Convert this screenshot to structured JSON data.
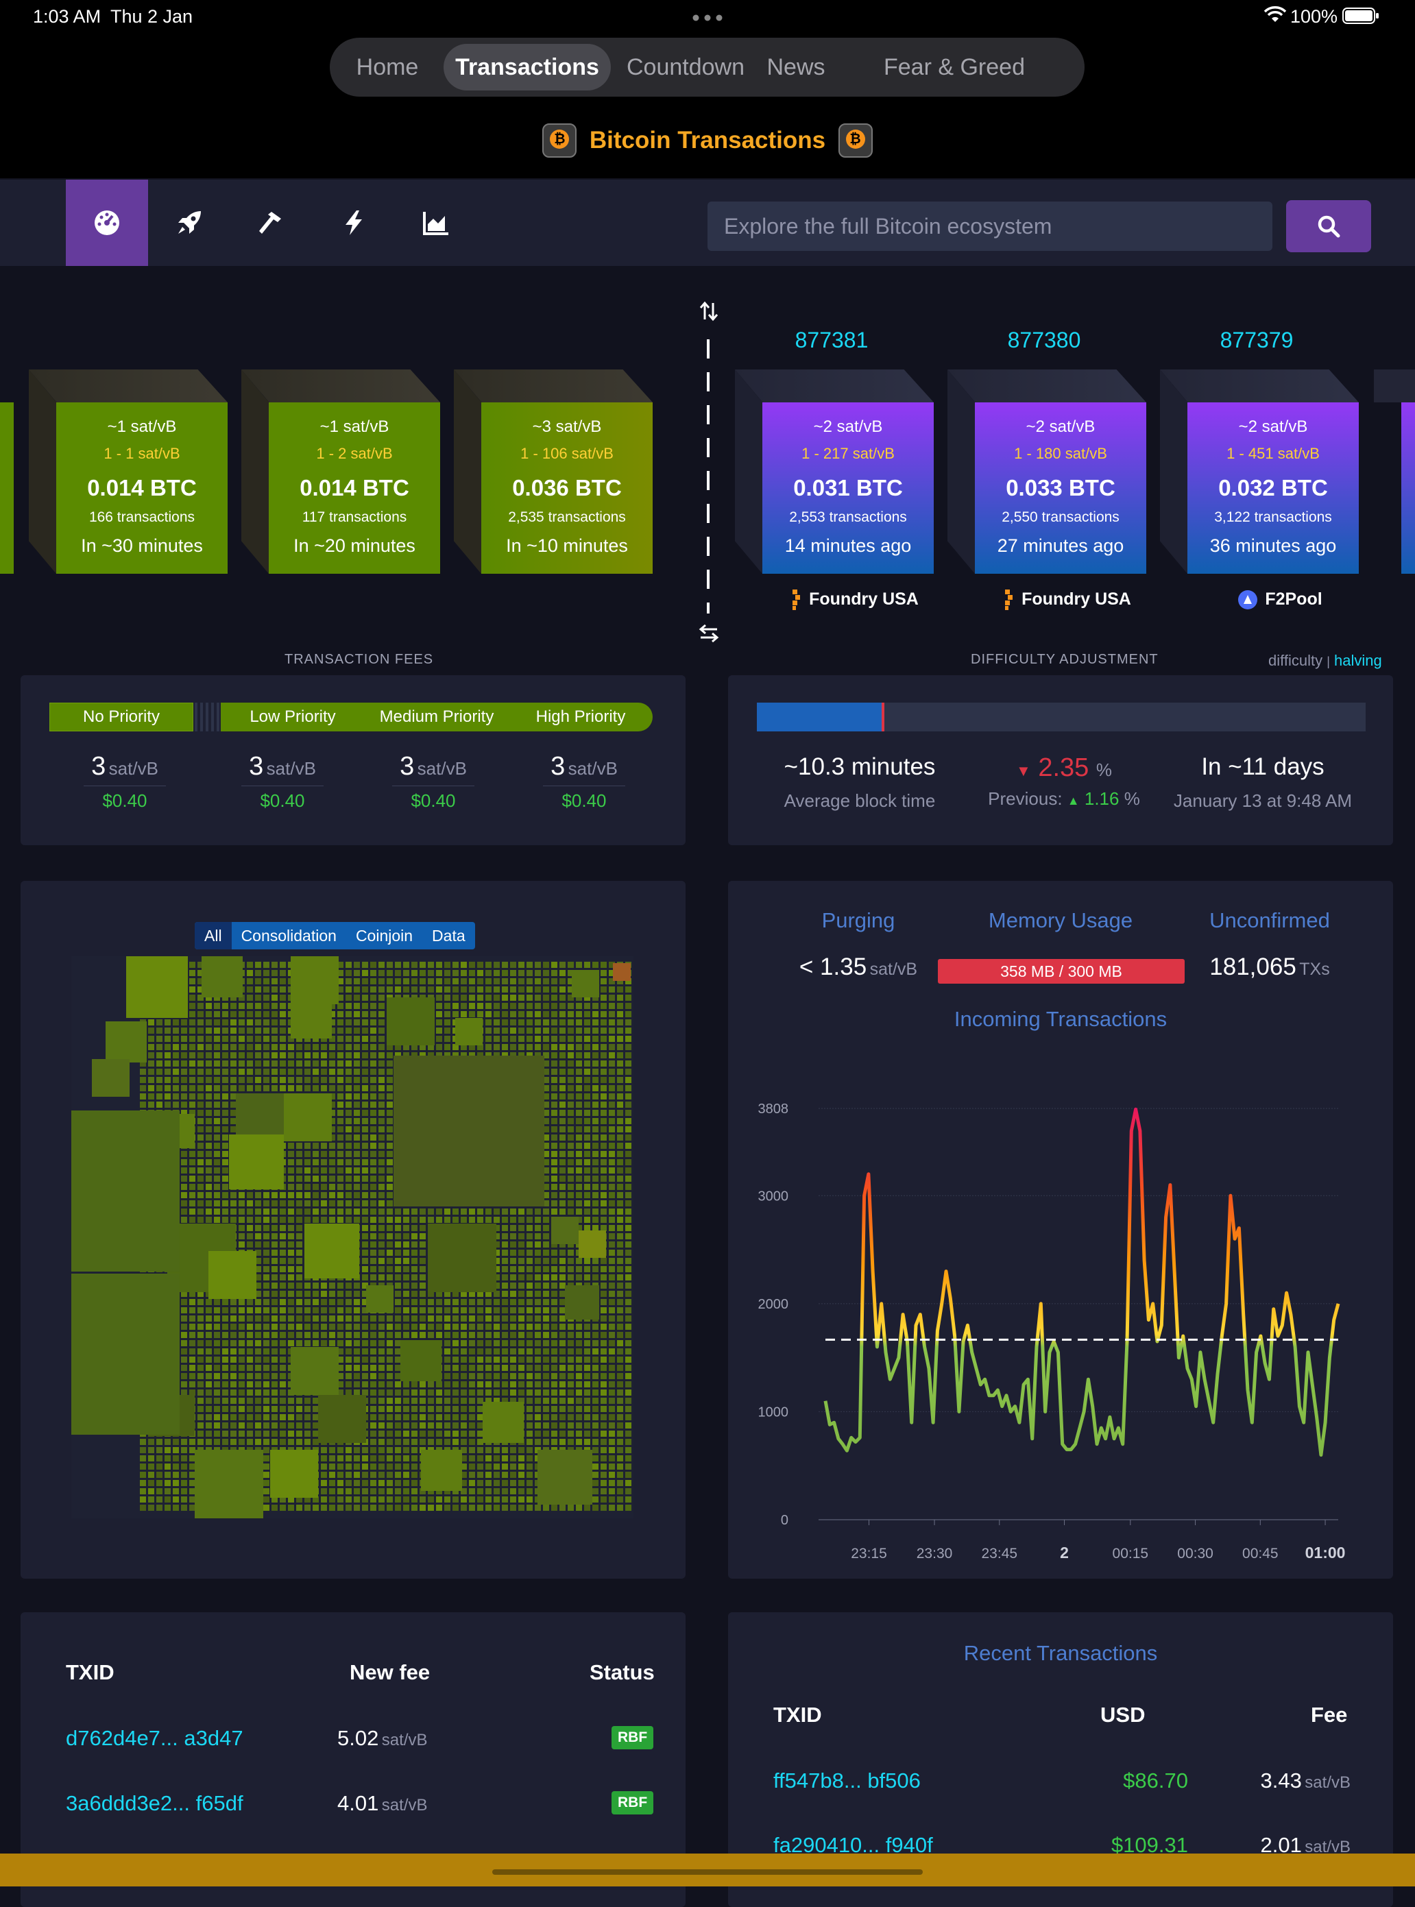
{
  "status_bar": {
    "time": "1:03 AM",
    "date": "Thu 2 Jan",
    "battery": "100%"
  },
  "nav": {
    "tabs": [
      {
        "label": "Home",
        "active": false
      },
      {
        "label": "Transactions",
        "active": true
      },
      {
        "label": "Countdown",
        "active": false
      },
      {
        "label": "News",
        "active": false
      },
      {
        "label": "Fear & Greed",
        "active": false
      }
    ]
  },
  "app_title": "Bitcoin Transactions",
  "toolbar": {
    "icons": [
      "dashboard-icon",
      "rocket-icon",
      "hammer-icon",
      "lightning-icon",
      "area-chart-icon"
    ],
    "search_placeholder": "Explore the full Bitcoin ecosystem"
  },
  "mempool_blocks": [
    {
      "median": "~1 sat/vB",
      "range": "1 - 1 sat/vB",
      "total": "0.014 BTC",
      "txs": "166 transactions",
      "eta": "In ~30 minutes"
    },
    {
      "median": "~1 sat/vB",
      "range": "1 - 2 sat/vB",
      "total": "0.014 BTC",
      "txs": "117 transactions",
      "eta": "In ~20 minutes"
    },
    {
      "median": "~3 sat/vB",
      "range": "1 - 106 sat/vB",
      "total": "0.036 BTC",
      "txs": "2,535 transactions",
      "eta": "In ~10 minutes"
    }
  ],
  "mined_blocks": [
    {
      "height": "877381",
      "median": "~2 sat/vB",
      "range": "1 - 217 sat/vB",
      "total": "0.031 BTC",
      "txs": "2,553 transactions",
      "age": "14 minutes ago",
      "pool": "Foundry USA"
    },
    {
      "height": "877380",
      "median": "~2 sat/vB",
      "range": "1 - 180 sat/vB",
      "total": "0.033 BTC",
      "txs": "2,550 transactions",
      "age": "27 minutes ago",
      "pool": "Foundry USA"
    },
    {
      "height": "877379",
      "median": "~2 sat/vB",
      "range": "1 - 451 sat/vB",
      "total": "0.032 BTC",
      "txs": "3,122 transactions",
      "age": "36 minutes ago",
      "pool": "F2Pool"
    }
  ],
  "fees": {
    "section_label": "TRANSACTION FEES",
    "labels": [
      "No Priority",
      "Low Priority",
      "Medium Priority",
      "High Priority"
    ],
    "values": [
      "3",
      "3",
      "3",
      "3"
    ],
    "unit": "sat/vB",
    "usd": [
      "$0.40",
      "$0.40",
      "$0.40",
      "$0.40"
    ]
  },
  "difficulty": {
    "section_label": "DIFFICULTY ADJUSTMENT",
    "links": {
      "difficulty": "difficulty",
      "separator": "|",
      "halving": "halving"
    },
    "progress": 0.21,
    "avg_block_time": "~10.3 minutes",
    "avg_block_time_label": "Average block time",
    "change": "2.35",
    "change_unit": "%",
    "previous_label": "Previous:",
    "previous": "1.16",
    "previous_unit": "%",
    "eta": "In ~11 days",
    "eta_date": "January 13 at 9:48 AM"
  },
  "mempool_filters": [
    "All",
    "Consolidation",
    "Coinjoin",
    "Data"
  ],
  "mempool_stats": {
    "purging_label": "Purging",
    "purging_value": "< 1.35",
    "purging_unit": "sat/vB",
    "memory_label": "Memory Usage",
    "memory_value": "358 MB / 300 MB",
    "unconfirmed_label": "Unconfirmed",
    "unconfirmed_value": "181,065",
    "unconfirmed_unit": "TXs"
  },
  "chart_data": {
    "type": "line",
    "title": "Incoming Transactions",
    "xlabel": "",
    "ylabel": "",
    "ylim": [
      0,
      3808
    ],
    "y_ticks": [
      "3808",
      "3000",
      "2000",
      "1000",
      "0"
    ],
    "x_ticks": [
      "23:15",
      "23:30",
      "23:45",
      "2",
      "00:15",
      "00:30",
      "00:45",
      "01:00"
    ],
    "reference_line": 1667,
    "x_range": [
      0,
      120
    ],
    "values": [
      1100,
      880,
      900,
      750,
      700,
      640,
      760,
      720,
      760,
      3000,
      3200,
      2300,
      1600,
      2000,
      1550,
      1300,
      1400,
      1500,
      1900,
      1650,
      900,
      1800,
      1900,
      1600,
      1400,
      900,
      1750,
      2000,
      2300,
      2050,
      1700,
      1000,
      1650,
      1800,
      1550,
      1400,
      1250,
      1300,
      1150,
      1150,
      1200,
      1050,
      1150,
      1000,
      1050,
      900,
      1250,
      1300,
      750,
      1600,
      2000,
      1000,
      1550,
      1650,
      1550,
      700,
      650,
      650,
      700,
      850,
      1000,
      1300,
      1050,
      700,
      850,
      750,
      950,
      750,
      850,
      700,
      1650,
      3600,
      3800,
      3600,
      2400,
      1850,
      2000,
      1650,
      1800,
      2800,
      3100,
      2300,
      1500,
      1700,
      1400,
      1300,
      1050,
      1550,
      1300,
      1100,
      900,
      1350,
      1700,
      2000,
      3000,
      2600,
      2700,
      1900,
      1200,
      900,
      1550,
      1700,
      1450,
      1300,
      1950,
      1700,
      1800,
      2100,
      1900,
      1600,
      1050,
      900,
      1550,
      1250,
      950,
      600,
      900,
      1500,
      1850,
      2000
    ]
  },
  "rbf_table": {
    "headers": [
      "TXID",
      "New fee",
      "Status"
    ],
    "rows": [
      {
        "txid": "d762d4e7... a3d47",
        "fee": "5.02",
        "unit": "sat/vB",
        "status": "RBF"
      },
      {
        "txid": "3a6ddd3e2... f65df",
        "fee": "4.01",
        "unit": "sat/vB",
        "status": "RBF"
      }
    ]
  },
  "recent_tx": {
    "title": "Recent Transactions",
    "headers": [
      "TXID",
      "USD",
      "Fee"
    ],
    "rows": [
      {
        "txid": "ff547b8... bf506",
        "usd": "$86.70",
        "fee": "3.43",
        "unit": "sat/vB"
      },
      {
        "txid": "fa290410... f940f",
        "usd": "$109.31",
        "fee": "2.01",
        "unit": "sat/vB"
      }
    ]
  },
  "colors": {
    "accent_purple": "#653b9c",
    "mempool_green": "#5b8a00",
    "mined_purple": "#9339f4",
    "mined_blue": "#105fb0",
    "link_cyan": "#1bd8f4",
    "fee_green": "#3bcc49",
    "alert_red": "#dc3545",
    "bitcoin_orange": "#f7a823"
  }
}
